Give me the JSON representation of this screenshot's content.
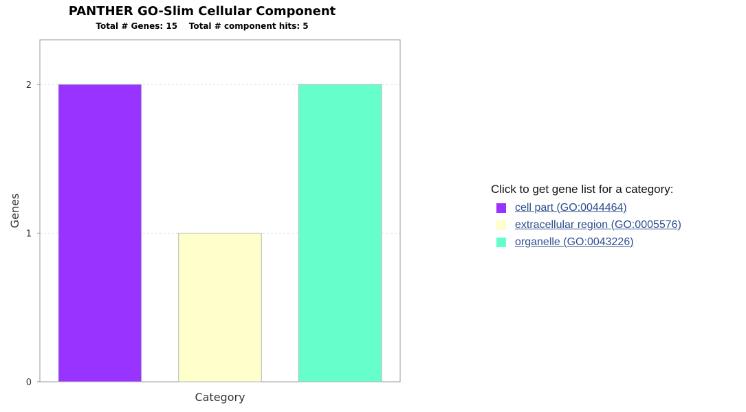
{
  "chart_data": {
    "type": "bar",
    "title": "PANTHER GO-Slim Cellular Component",
    "subtitle": "Total # Genes: 15    Total # component hits: 5",
    "xlabel": "Category",
    "ylabel": "Genes",
    "ylim": [
      0,
      2.3
    ],
    "yticks": [
      "0",
      "1",
      "2"
    ],
    "grid": true,
    "categories": [
      "cell part (GO:0044464)",
      "extracellular region (GO:0005576)",
      "organelle (GO:0043226)"
    ],
    "values": [
      2,
      1,
      2
    ],
    "colors": [
      "#9933ff",
      "#ffffcc",
      "#66ffcc"
    ]
  },
  "legend": {
    "heading": "Click to get gene list for a category:",
    "items": [
      {
        "label": "cell part (GO:0044464)",
        "color": "#9933ff"
      },
      {
        "label": "extracellular region (GO:0005576)",
        "color": "#ffffcc"
      },
      {
        "label": "organelle (GO:0043226)",
        "color": "#66ffcc"
      }
    ]
  }
}
